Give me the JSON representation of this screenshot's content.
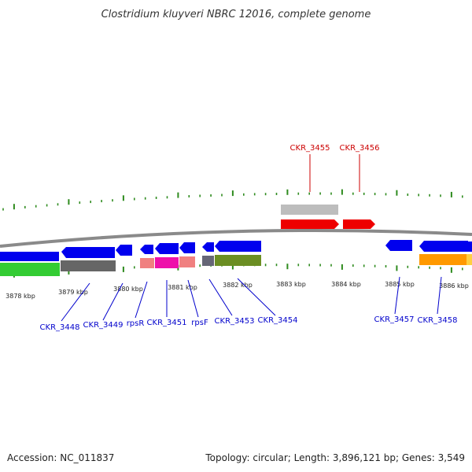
{
  "title": "Clostridium kluyveri NBRC 12016, complete genome",
  "footer": {
    "accession": "Accession: NC_011837",
    "topology": "Topology: circular; Length: 3,896,121 bp; Genes: 3,549"
  },
  "colors": {
    "backbone": "#8a8a8a",
    "tick": "#2e8b1e",
    "label_plus": "#cc0000",
    "label_minus": "#0000cc"
  },
  "kbp_ticks": [
    {
      "text": "3878 kbp"
    },
    {
      "text": "3879 kbp"
    },
    {
      "text": "3880 kbp"
    },
    {
      "text": "3881 kbp"
    },
    {
      "text": "3882 kbp"
    },
    {
      "text": "3883 kbp"
    },
    {
      "text": "3884 kbp"
    },
    {
      "text": "3885 kbp"
    },
    {
      "text": "3886 kbp"
    }
  ],
  "genes_plus": [
    {
      "name": "CKR_3455"
    },
    {
      "name": "CKR_3456"
    }
  ],
  "genes_minus": [
    {
      "name": "CKR_3448"
    },
    {
      "name": "CKR_3449"
    },
    {
      "name": "rpsR"
    },
    {
      "name": "CKR_3451"
    },
    {
      "name": "rpsF"
    },
    {
      "name": "CKR_3453"
    },
    {
      "name": "CKR_3454"
    },
    {
      "name": "CKR_3457"
    },
    {
      "name": "CKR_3458"
    }
  ]
}
